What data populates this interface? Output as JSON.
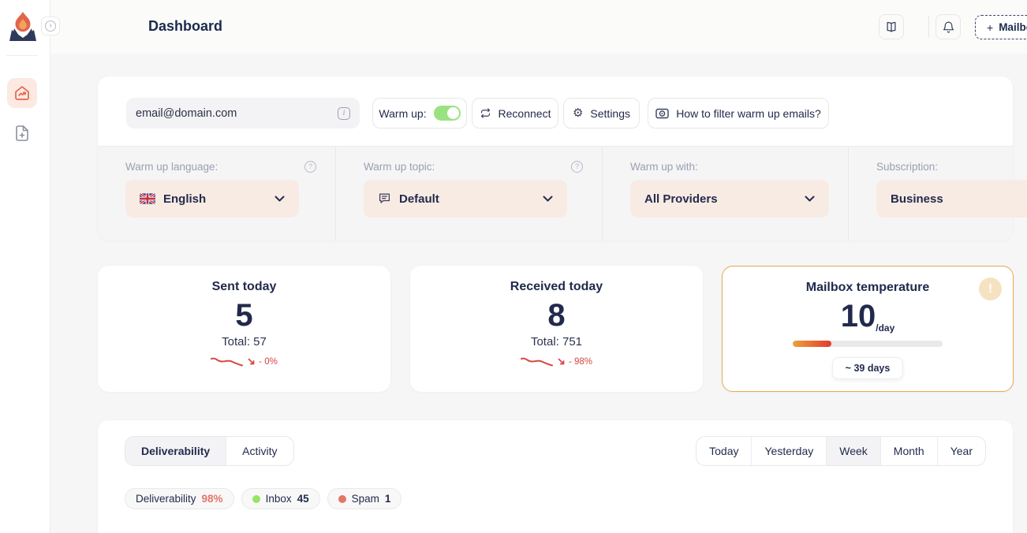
{
  "header": {
    "title": "Dashboard",
    "mailbox_plus": "+",
    "mailbox_label": "Mailbox"
  },
  "toolbar": {
    "email": "email@domain.com",
    "warmup_label": "Warm up:",
    "warmup_enabled": true,
    "reconnect_label": "Reconnect",
    "settings_label": "Settings",
    "filter_help_label": "How to filter warm up emails?"
  },
  "settings_row": {
    "columns": [
      {
        "label": "Warm up language:",
        "value": "English",
        "icon": "uk-flag",
        "has_help": true
      },
      {
        "label": "Warm up topic:",
        "value": "Default",
        "icon": "chat",
        "has_help": true
      },
      {
        "label": "Warm up with:",
        "value": "All Providers",
        "has_help": false
      },
      {
        "label": "Subscription:",
        "value": "Business",
        "has_help": false
      }
    ]
  },
  "stats": {
    "sent": {
      "title": "Sent today",
      "value": "5",
      "total": "Total: 57",
      "trend": "- 0%"
    },
    "received": {
      "title": "Received today",
      "value": "8",
      "total": "Total: 751",
      "trend": "- 98%"
    },
    "temperature": {
      "title": "Mailbox temperature",
      "value": "10",
      "unit": "/day",
      "progress_pct": 26,
      "eta": "~ 39 days"
    }
  },
  "panel": {
    "tabs": [
      {
        "label": "Deliverability"
      },
      {
        "label": "Activity"
      }
    ],
    "active_tab": "Deliverability",
    "ranges": [
      {
        "label": "Today"
      },
      {
        "label": "Yesterday"
      },
      {
        "label": "Week"
      },
      {
        "label": "Month"
      },
      {
        "label": "Year"
      }
    ],
    "active_range": "Week",
    "legend": [
      {
        "label": "Deliverability",
        "value": "98%",
        "value_color": "#e4756a"
      },
      {
        "label": "Inbox",
        "value": "45",
        "dot_color": "#97e561"
      },
      {
        "label": "Spam",
        "value": "1",
        "dot_color": "#e4756a"
      }
    ]
  },
  "colors": {
    "accent_orange": "#e2654a",
    "navy_text": "#212a4c",
    "peach_fill": "#f8ebe3",
    "toggle_green": "#9ae281",
    "trend_red": "#d64541",
    "temperature_border": "#e9aa4e"
  }
}
